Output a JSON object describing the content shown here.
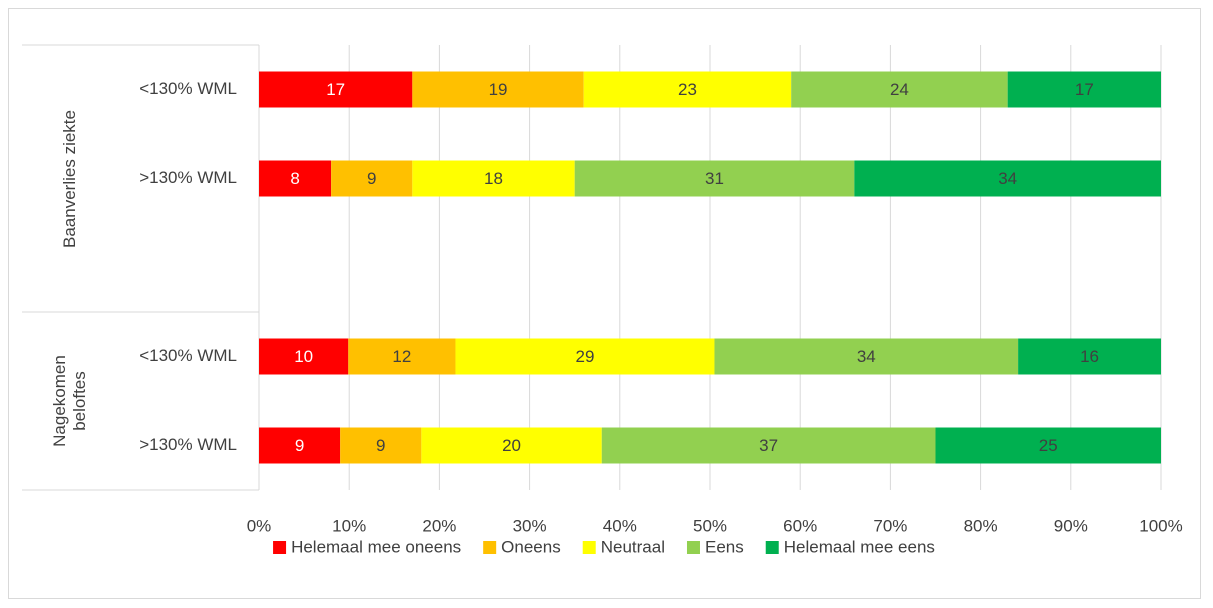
{
  "chart_data": {
    "type": "bar",
    "orientation": "horizontal",
    "stacking": "percent",
    "groups": [
      {
        "name": "Baanverlies ziekte",
        "categories": [
          "<130% WML",
          ">130% WML",
          null
        ]
      },
      {
        "name": "Nagekomen beloftes",
        "categories": [
          "<130% WML",
          ">130% WML"
        ]
      }
    ],
    "series": [
      {
        "name": "Helemaal mee oneens",
        "color": "#ff0000",
        "label_color": "#ffffff",
        "values": [
          17,
          8,
          null,
          10,
          9
        ]
      },
      {
        "name": "Oneens",
        "color": "#ffc000",
        "label_color": "#404040",
        "values": [
          19,
          9,
          null,
          12,
          9
        ]
      },
      {
        "name": "Neutraal",
        "color": "#ffff00",
        "label_color": "#404040",
        "values": [
          23,
          18,
          null,
          29,
          20
        ]
      },
      {
        "name": "Eens",
        "color": "#92d050",
        "label_color": "#404040",
        "values": [
          24,
          31,
          null,
          34,
          37
        ]
      },
      {
        "name": "Helemaal mee eens",
        "color": "#00b050",
        "label_color": "#404040",
        "values": [
          17,
          34,
          null,
          16,
          25
        ]
      }
    ],
    "xlim": [
      0,
      100
    ],
    "xticks": [
      {
        "value": 0,
        "label": "0%"
      },
      {
        "value": 10,
        "label": "10%"
      },
      {
        "value": 20,
        "label": "20%"
      },
      {
        "value": 30,
        "label": "30%"
      },
      {
        "value": 40,
        "label": "40%"
      },
      {
        "value": 50,
        "label": "50%"
      },
      {
        "value": 60,
        "label": "60%"
      },
      {
        "value": 70,
        "label": "70%"
      },
      {
        "value": 80,
        "label": "80%"
      },
      {
        "value": 90,
        "label": "90%"
      },
      {
        "value": 100,
        "label": "100%"
      }
    ],
    "grid": true,
    "legend": "bottom"
  }
}
